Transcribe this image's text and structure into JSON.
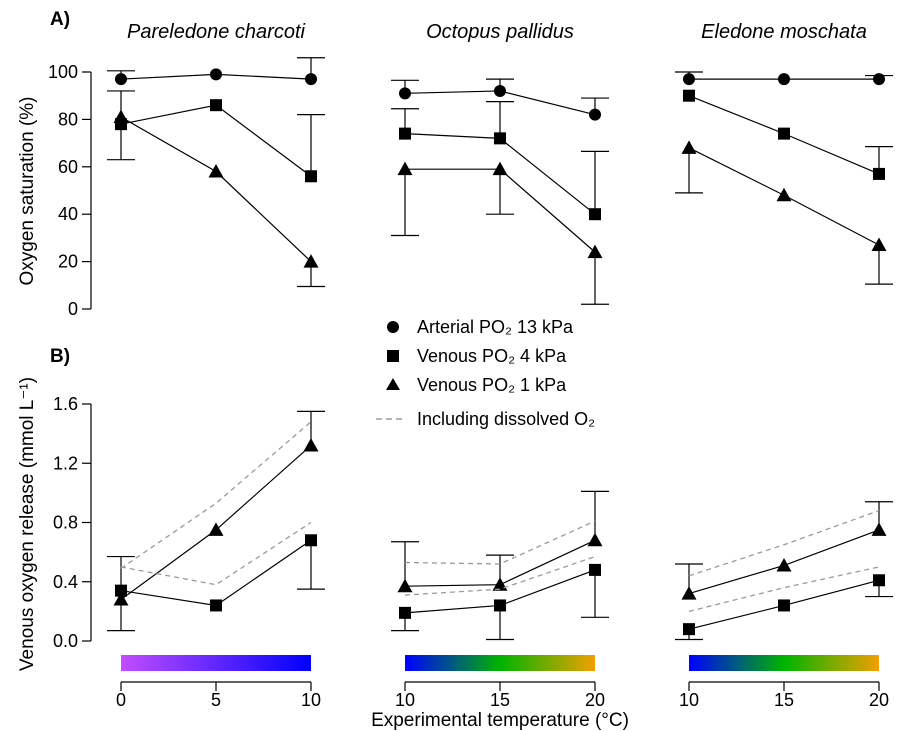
{
  "figure": {
    "panel_a_label": "A)",
    "panel_b_label": "B)",
    "ylabel_a": "Oxygen saturation (%)",
    "ylabel_b": "Venous oxygen release (mmol L⁻¹)",
    "xlabel": "Experimental temperature (°C)"
  },
  "legend": {
    "arterial": "Arterial PO₂ 13 kPa",
    "venous4": "Venous PO₂ 4 kPa",
    "venous1": "Venous PO₂ 1 kPa",
    "dissolved": "Including dissolved O₂"
  },
  "colors": {
    "data": "#000000",
    "dashed": "#9a9a9a",
    "gradient_cold": [
      "#c14dff",
      "#0000ff"
    ],
    "gradient_warm": [
      "#0000ff",
      "#00b400",
      "#f0a000"
    ]
  },
  "chart_data": [
    {
      "type": "line",
      "panel": "A",
      "title": "Pareledone charcoti",
      "ylabel": "Oxygen saturation (%)",
      "ylim": [
        0,
        100
      ],
      "yticks": [
        0,
        20,
        40,
        60,
        80,
        100
      ],
      "x": [
        0,
        5,
        10
      ],
      "xticks": [
        0,
        5,
        10
      ],
      "series": [
        {
          "name": "Arterial PO₂ 13 kPa",
          "marker": "circle",
          "values": [
            97,
            99,
            97
          ],
          "err_hi": [
            100.5,
            null,
            106
          ],
          "err_lo": [
            null,
            null,
            null
          ]
        },
        {
          "name": "Venous PO₂ 4 kPa",
          "marker": "square",
          "values": [
            78,
            86,
            56
          ],
          "err_hi": [
            92,
            null,
            82
          ],
          "err_lo": [
            63,
            null,
            null
          ]
        },
        {
          "name": "Venous PO₂ 1 kPa",
          "marker": "triangle",
          "values": [
            81,
            58,
            20
          ],
          "err_hi": [
            null,
            null,
            null
          ],
          "err_lo": [
            null,
            null,
            9.5
          ]
        }
      ]
    },
    {
      "type": "line",
      "panel": "A",
      "title": "Octopus pallidus",
      "ylim": [
        0,
        100
      ],
      "x": [
        10,
        15,
        20
      ],
      "xticks": [
        10,
        15,
        20
      ],
      "series": [
        {
          "name": "Arterial PO₂ 13 kPa",
          "marker": "circle",
          "values": [
            91,
            92,
            82
          ],
          "err_hi": [
            96.5,
            97,
            89
          ],
          "err_lo": [
            null,
            null,
            null
          ]
        },
        {
          "name": "Venous PO₂ 4 kPa",
          "marker": "square",
          "values": [
            74,
            72,
            40
          ],
          "err_hi": [
            84.5,
            87.5,
            66.5
          ],
          "err_lo": [
            null,
            null,
            null
          ]
        },
        {
          "name": "Venous PO₂ 1 kPa",
          "marker": "triangle",
          "values": [
            59,
            59,
            24
          ],
          "err_hi": [
            null,
            null,
            null
          ],
          "err_lo": [
            31,
            40,
            2
          ]
        }
      ]
    },
    {
      "type": "line",
      "panel": "A",
      "title": "Eledone moschata",
      "ylim": [
        0,
        100
      ],
      "x": [
        10,
        15,
        20
      ],
      "xticks": [
        10,
        15,
        20
      ],
      "series": [
        {
          "name": "Arterial PO₂ 13 kPa",
          "marker": "circle",
          "values": [
            97,
            97,
            97
          ],
          "err_hi": [
            100,
            null,
            98.5
          ],
          "err_lo": [
            null,
            null,
            null
          ]
        },
        {
          "name": "Venous PO₂ 4 kPa",
          "marker": "square",
          "values": [
            90,
            74,
            57
          ],
          "err_hi": [
            null,
            null,
            68.5
          ],
          "err_lo": [
            null,
            null,
            null
          ]
        },
        {
          "name": "Venous PO₂ 1 kPa",
          "marker": "triangle",
          "values": [
            68,
            48,
            27
          ],
          "err_hi": [
            null,
            null,
            null
          ],
          "err_lo": [
            49,
            null,
            10.5
          ]
        }
      ]
    },
    {
      "type": "line",
      "panel": "B",
      "ylabel": "Venous oxygen release (mmol L⁻¹)",
      "ylim": [
        0,
        1.6
      ],
      "yticks": [
        0.0,
        0.4,
        0.8,
        1.2,
        1.6
      ],
      "x": [
        0,
        5,
        10
      ],
      "xticks": [
        0,
        5,
        10
      ],
      "series": [
        {
          "name": "Venous PO₂ 4 kPa",
          "marker": "square",
          "values": [
            0.34,
            0.24,
            0.68
          ],
          "err_hi": [
            null,
            null,
            null
          ],
          "err_lo": [
            null,
            null,
            0.35
          ]
        },
        {
          "name": "Venous PO₂ 1 kPa",
          "marker": "triangle",
          "values": [
            0.28,
            0.75,
            1.32
          ],
          "err_hi": [
            0.57,
            null,
            1.55
          ],
          "err_lo": [
            0.07,
            null,
            null
          ]
        },
        {
          "name": "Including dissolved O₂ (4 kPa)",
          "dashed": true,
          "values": [
            0.5,
            0.38,
            0.8
          ]
        },
        {
          "name": "Including dissolved O₂ (1 kPa)",
          "dashed": true,
          "values": [
            0.49,
            0.93,
            1.48
          ]
        }
      ]
    },
    {
      "type": "line",
      "panel": "B",
      "ylim": [
        0,
        1.6
      ],
      "x": [
        10,
        15,
        20
      ],
      "xticks": [
        10,
        15,
        20
      ],
      "series": [
        {
          "name": "Venous PO₂ 4 kPa",
          "marker": "square",
          "values": [
            0.19,
            0.24,
            0.48
          ],
          "err_hi": [
            null,
            null,
            null
          ],
          "err_lo": [
            0.07,
            0.01,
            0.16
          ]
        },
        {
          "name": "Venous PO₂ 1 kPa",
          "marker": "triangle",
          "values": [
            0.37,
            0.38,
            0.68
          ],
          "err_hi": [
            0.67,
            0.58,
            1.01
          ],
          "err_lo": [
            null,
            null,
            null
          ]
        },
        {
          "name": "Including dissolved O₂ (4 kPa)",
          "dashed": true,
          "values": [
            0.31,
            0.35,
            0.57
          ]
        },
        {
          "name": "Including dissolved O₂ (1 kPa)",
          "dashed": true,
          "values": [
            0.53,
            0.52,
            0.81
          ]
        }
      ]
    },
    {
      "type": "line",
      "panel": "B",
      "ylim": [
        0,
        1.6
      ],
      "x": [
        10,
        15,
        20
      ],
      "xticks": [
        10,
        15,
        20
      ],
      "series": [
        {
          "name": "Venous PO₂ 4 kPa",
          "marker": "square",
          "values": [
            0.08,
            0.24,
            0.41
          ],
          "err_hi": [
            null,
            null,
            null
          ],
          "err_lo": [
            0.01,
            null,
            0.3
          ]
        },
        {
          "name": "Venous PO₂ 1 kPa",
          "marker": "triangle",
          "values": [
            0.32,
            0.51,
            0.75
          ],
          "err_hi": [
            0.52,
            null,
            0.94
          ],
          "err_lo": [
            null,
            null,
            null
          ]
        },
        {
          "name": "Including dissolved O₂ (4 kPa)",
          "dashed": true,
          "values": [
            0.2,
            0.36,
            0.5
          ]
        },
        {
          "name": "Including dissolved O₂ (1 kPa)",
          "dashed": true,
          "values": [
            0.44,
            0.65,
            0.88
          ]
        }
      ]
    }
  ]
}
